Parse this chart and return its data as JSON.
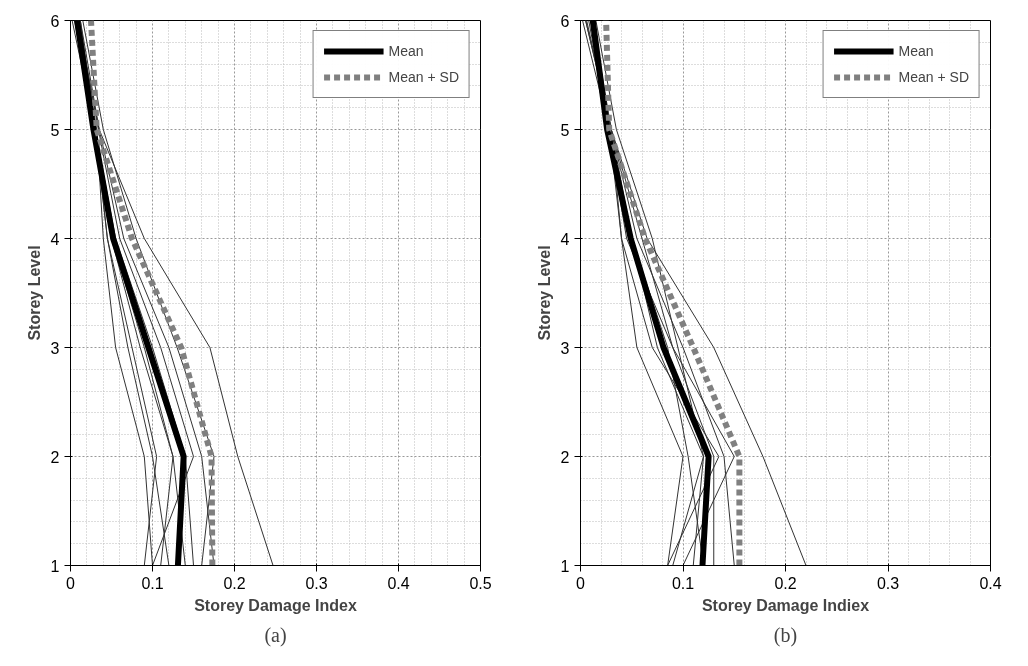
{
  "chart_data": [
    {
      "type": "line",
      "xlabel": "Storey Damage Index",
      "ylabel": "Storey Level",
      "annotations": [
        "(a)"
      ],
      "xlim": [
        0,
        0.5
      ],
      "ylim": [
        1,
        6
      ],
      "xticks": [
        0,
        0.1,
        0.2,
        0.3,
        0.4,
        0.5
      ],
      "yticks": [
        1,
        2,
        3,
        4,
        5,
        6
      ],
      "grid": true,
      "legend": "top right",
      "line_style": "solid",
      "marker": "none",
      "series": [
        {
          "color": "#333333",
          "x": [
            0.247,
            0.204,
            0.17,
            0.09,
            0.035,
            0.008
          ],
          "values": [
            1,
            2,
            3,
            4,
            5,
            6
          ]
        },
        {
          "color": "#333333",
          "x": [
            0.09,
            0.105,
            0.075,
            0.045,
            0.03,
            0.005
          ],
          "values": [
            1,
            2,
            3,
            4,
            5,
            6
          ]
        },
        {
          "color": "#333333",
          "x": [
            0.1,
            0.09,
            0.055,
            0.04,
            0.032,
            0.01
          ],
          "values": [
            1,
            2,
            3,
            4,
            5,
            6
          ]
        },
        {
          "color": "#333333",
          "x": [
            0.175,
            0.16,
            0.12,
            0.065,
            0.035,
            0.012
          ],
          "values": [
            1,
            2,
            3,
            4,
            5,
            6
          ]
        },
        {
          "color": "#333333",
          "x": [
            0.14,
            0.125,
            0.085,
            0.05,
            0.03,
            0.008
          ],
          "values": [
            1,
            2,
            3,
            4,
            5,
            6
          ]
        },
        {
          "color": "#333333",
          "x": [
            0.1,
            0.15,
            0.11,
            0.06,
            0.034,
            0.01
          ],
          "values": [
            1,
            2,
            3,
            4,
            5,
            6
          ]
        },
        {
          "color": "#333333",
          "x": [
            0.16,
            0.175,
            0.13,
            0.08,
            0.04,
            0.015
          ],
          "values": [
            1,
            2,
            3,
            4,
            5,
            6
          ]
        },
        {
          "color": "#333333",
          "x": [
            0.11,
            0.125,
            0.09,
            0.05,
            0.03,
            0.006
          ],
          "values": [
            1,
            2,
            3,
            4,
            5,
            6
          ]
        },
        {
          "color": "#333333",
          "x": [
            0.15,
            0.14,
            0.1,
            0.055,
            0.03,
            0.002
          ],
          "values": [
            1,
            2,
            3,
            4,
            5,
            6
          ]
        },
        {
          "color": "#333333",
          "x": [
            0.12,
            0.1,
            0.07,
            0.045,
            0.03,
            0.012
          ],
          "values": [
            1,
            2,
            3,
            4,
            5,
            6
          ]
        },
        {
          "name": "Mean",
          "color": "#000000",
          "x": [
            0.131,
            0.138,
            0.095,
            0.052,
            0.028,
            0.008
          ],
          "values": [
            1,
            2,
            3,
            4,
            5,
            6
          ]
        },
        {
          "name": "Mean + SD",
          "color": "#808080",
          "line_style": "dashed",
          "x": [
            0.173,
            0.172,
            0.135,
            0.075,
            0.032,
            0.025
          ],
          "values": [
            1,
            2,
            3,
            4,
            5,
            6
          ]
        }
      ]
    },
    {
      "type": "line",
      "xlabel": "Storey Damage Indiex",
      "ylabel": "Storey Level",
      "annotations": [
        "(b)"
      ],
      "xlim": [
        0,
        0.4
      ],
      "ylim": [
        1,
        6
      ],
      "xticks": [
        0,
        0.1,
        0.2,
        0.3,
        0.4
      ],
      "yticks": [
        1,
        2,
        3,
        4,
        5,
        6
      ],
      "grid": true,
      "legend": "top right",
      "line_style": "solid",
      "marker": "none",
      "series": [
        {
          "color": "#333333",
          "x": [
            0.22,
            0.178,
            0.13,
            0.065,
            0.03,
            0.005
          ],
          "values": [
            1,
            2,
            3,
            4,
            5,
            6
          ]
        },
        {
          "color": "#333333",
          "x": [
            0.085,
            0.1,
            0.055,
            0.04,
            0.03,
            0.005
          ],
          "values": [
            1,
            2,
            3,
            4,
            5,
            6
          ]
        },
        {
          "color": "#333333",
          "x": [
            0.09,
            0.12,
            0.075,
            0.05,
            0.03,
            0.01
          ],
          "values": [
            1,
            2,
            3,
            4,
            5,
            6
          ]
        },
        {
          "color": "#333333",
          "x": [
            0.15,
            0.14,
            0.1,
            0.055,
            0.03,
            0.012
          ],
          "values": [
            1,
            2,
            3,
            4,
            5,
            6
          ]
        },
        {
          "color": "#333333",
          "x": [
            0.12,
            0.105,
            0.085,
            0.05,
            0.028,
            0.008
          ],
          "values": [
            1,
            2,
            3,
            4,
            5,
            6
          ]
        },
        {
          "color": "#333333",
          "x": [
            0.1,
            0.15,
            0.09,
            0.06,
            0.03,
            0.006
          ],
          "values": [
            1,
            2,
            3,
            4,
            5,
            6
          ]
        },
        {
          "color": "#333333",
          "x": [
            0.13,
            0.13,
            0.09,
            0.045,
            0.027,
            0.01
          ],
          "values": [
            1,
            2,
            3,
            4,
            5,
            6
          ]
        },
        {
          "color": "#333333",
          "x": [
            0.085,
            0.135,
            0.07,
            0.04,
            0.028,
            0.002
          ],
          "values": [
            1,
            2,
            3,
            4,
            5,
            6
          ]
        },
        {
          "color": "#333333",
          "x": [
            0.11,
            0.12,
            0.095,
            0.07,
            0.035,
            0.015
          ],
          "values": [
            1,
            2,
            3,
            4,
            5,
            6
          ]
        },
        {
          "name": "Mean",
          "color": "#000000",
          "x": [
            0.119,
            0.125,
            0.081,
            0.049,
            0.026,
            0.012
          ],
          "values": [
            1,
            2,
            3,
            4,
            5,
            6
          ]
        },
        {
          "name": "Mean + SD",
          "color": "#808080",
          "line_style": "dashed",
          "x": [
            0.155,
            0.155,
            0.11,
            0.063,
            0.028,
            0.025
          ],
          "values": [
            1,
            2,
            3,
            4,
            5,
            6
          ]
        }
      ]
    }
  ]
}
